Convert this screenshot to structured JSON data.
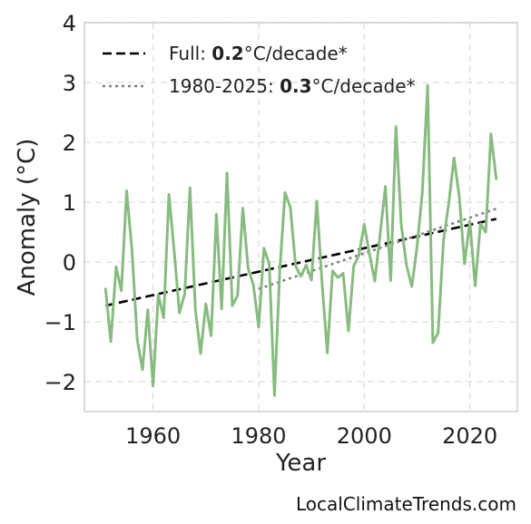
{
  "chart_data": {
    "type": "line",
    "xlabel": "Year",
    "ylabel": "Anomaly (°C)",
    "xlim": [
      1947,
      2029
    ],
    "ylim": [
      -2.5,
      4
    ],
    "xticks": [
      1960,
      1980,
      2000,
      2020
    ],
    "yticks": [
      -2,
      -1,
      0,
      1,
      2,
      3,
      4
    ],
    "ytick_labels": [
      "−2",
      "−1",
      "0",
      "1",
      "2",
      "3",
      "4"
    ],
    "grid": true,
    "legend_position": "top-left",
    "series": [
      {
        "kind": "anomaly",
        "color": "#88bb80",
        "x": [
          1951,
          1952,
          1953,
          1954,
          1955,
          1956,
          1957,
          1958,
          1959,
          1960,
          1961,
          1962,
          1963,
          1964,
          1965,
          1966,
          1967,
          1968,
          1969,
          1970,
          1971,
          1972,
          1973,
          1974,
          1975,
          1976,
          1977,
          1978,
          1979,
          1980,
          1981,
          1982,
          1983,
          1984,
          1985,
          1986,
          1987,
          1988,
          1989,
          1990,
          1991,
          1992,
          1993,
          1994,
          1995,
          1996,
          1997,
          1998,
          1999,
          2000,
          2001,
          2002,
          2003,
          2004,
          2005,
          2006,
          2007,
          2008,
          2009,
          2010,
          2011,
          2012,
          2013,
          2014,
          2015,
          2016,
          2017,
          2018,
          2019,
          2020,
          2021,
          2022,
          2023,
          2024,
          2025
        ],
        "y": [
          -0.45,
          -1.33,
          -0.08,
          -0.48,
          1.19,
          0.2,
          -1.3,
          -1.8,
          -0.8,
          -2.07,
          -0.55,
          -0.93,
          1.13,
          0.18,
          -0.85,
          -0.53,
          1.24,
          -0.78,
          -1.53,
          -0.7,
          -1.23,
          0.8,
          -0.78,
          1.49,
          -0.73,
          -0.56,
          0.9,
          -0.1,
          -0.38,
          -1.09,
          0.23,
          -0.03,
          -2.23,
          -0.15,
          1.16,
          0.91,
          -0.07,
          -0.24,
          -0.05,
          -0.3,
          1.02,
          -0.35,
          -1.52,
          -0.15,
          -0.26,
          -0.19,
          -1.15,
          -0.07,
          0.12,
          0.63,
          0.13,
          -0.32,
          0.47,
          1.26,
          -0.31,
          2.26,
          0.63,
          -0.05,
          -0.41,
          0.26,
          1.17,
          2.95,
          -1.35,
          -1.18,
          0.36,
          0.98,
          1.74,
          1.09,
          -0.03,
          0.68,
          -0.4,
          0.64,
          0.5,
          2.14,
          1.39
        ]
      }
    ],
    "trends": [
      {
        "style": "dashed",
        "color": "#000000",
        "x": [
          1951,
          2025
        ],
        "y": [
          -0.73,
          0.72
        ],
        "legend_prefix": "Full: ",
        "legend_value": "0.2",
        "legend_suffix": "°C/decade*"
      },
      {
        "style": "dotted",
        "color": "#808080",
        "x": [
          1980,
          2025
        ],
        "y": [
          -0.45,
          0.89
        ],
        "legend_prefix": "1980-2025: ",
        "legend_value": "0.3",
        "legend_suffix": "°C/decade*"
      }
    ]
  },
  "credit": "LocalClimateTrends.com"
}
